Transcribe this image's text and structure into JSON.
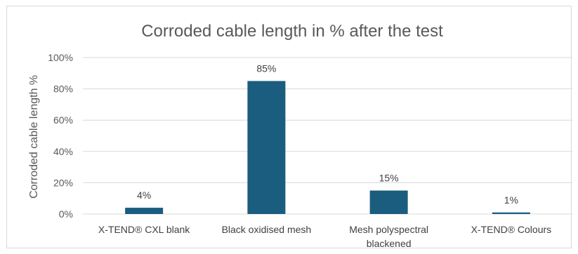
{
  "chart_data": {
    "type": "bar",
    "title": "Corroded cable length in % after the test",
    "xlabel": "",
    "ylabel": "Corroded cable length %",
    "categories": [
      [
        "X-TEND® CXL blank"
      ],
      [
        "Black oxidised mesh"
      ],
      [
        "Mesh polyspectral",
        "blackened"
      ],
      [
        "X-TEND® Colours"
      ]
    ],
    "values": [
      4,
      85,
      15,
      1
    ],
    "data_labels": [
      "4%",
      "85%",
      "15%",
      "1%"
    ],
    "ylim": [
      0,
      100
    ],
    "yticks": [
      0,
      20,
      40,
      60,
      80,
      100
    ],
    "ytick_labels": [
      "0%",
      "20%",
      "40%",
      "60%",
      "80%",
      "100%"
    ],
    "grid": true,
    "legend": "none",
    "colors": {
      "bar": "#1b5d7e",
      "grid": "#d9d9d9",
      "axis": "#d9d9d9"
    }
  }
}
